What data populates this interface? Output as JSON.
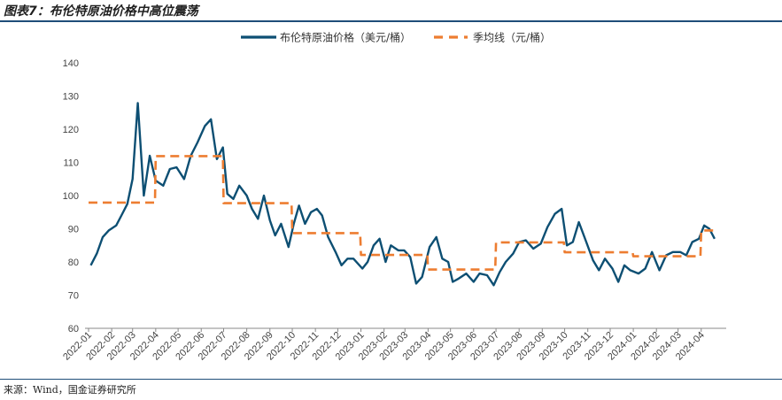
{
  "title": "图表7：布伦特原油价格中高位震荡",
  "source": "来源：Wind，国金证券研究所",
  "colors": {
    "series_main": "#0d4f73",
    "series_avg": "#ed7d31",
    "axis": "#888888",
    "rule": "#1f4e79"
  },
  "chart_data": {
    "type": "line",
    "title": "",
    "xlabel": "",
    "ylabel": "",
    "ylim": [
      60,
      140
    ],
    "yticks": [
      60,
      70,
      80,
      90,
      100,
      110,
      120,
      130,
      140
    ],
    "x_tick_labels": [
      "2022-01",
      "2022-02",
      "2022-03",
      "2022-04",
      "2022-05",
      "2022-06",
      "2022-07",
      "2022-08",
      "2022-09",
      "2022-10",
      "2022-11",
      "2022-12",
      "2023-01",
      "2023-02",
      "2023-03",
      "2023-04",
      "2023-05",
      "2023-06",
      "2023-07",
      "2023-08",
      "2023-09",
      "2023-10",
      "2023-11",
      "2023-12",
      "2024-01",
      "2024-02",
      "2024-03",
      "2024-04"
    ],
    "legend_position": "top-center",
    "grid": false,
    "series": [
      {
        "name": "布伦特原油价格（美元/桶）",
        "style": "solid",
        "x": [
          "2022-01-04",
          "2022-01-12",
          "2022-01-20",
          "2022-01-28",
          "2022-02-07",
          "2022-02-14",
          "2022-02-22",
          "2022-03-01",
          "2022-03-08",
          "2022-03-16",
          "2022-03-24",
          "2022-04-01",
          "2022-04-11",
          "2022-04-20",
          "2022-04-29",
          "2022-05-09",
          "2022-05-18",
          "2022-05-27",
          "2022-06-06",
          "2022-06-14",
          "2022-06-22",
          "2022-06-30",
          "2022-07-06",
          "2022-07-14",
          "2022-07-22",
          "2022-08-01",
          "2022-08-08",
          "2022-08-16",
          "2022-08-24",
          "2022-09-01",
          "2022-09-08",
          "2022-09-16",
          "2022-09-26",
          "2022-10-03",
          "2022-10-10",
          "2022-10-18",
          "2022-10-26",
          "2022-11-03",
          "2022-11-10",
          "2022-11-18",
          "2022-11-28",
          "2022-12-06",
          "2022-12-14",
          "2022-12-22",
          "2023-01-03",
          "2023-01-10",
          "2023-01-18",
          "2023-01-26",
          "2023-02-03",
          "2023-02-10",
          "2023-02-20",
          "2023-02-28",
          "2023-03-08",
          "2023-03-16",
          "2023-03-24",
          "2023-04-03",
          "2023-04-12",
          "2023-04-20",
          "2023-04-28",
          "2023-05-04",
          "2023-05-12",
          "2023-05-22",
          "2023-06-01",
          "2023-06-09",
          "2023-06-19",
          "2023-06-28",
          "2023-07-06",
          "2023-07-14",
          "2023-07-24",
          "2023-08-01",
          "2023-08-10",
          "2023-08-20",
          "2023-08-30",
          "2023-09-08",
          "2023-09-18",
          "2023-09-27",
          "2023-10-04",
          "2023-10-12",
          "2023-10-20",
          "2023-10-30",
          "2023-11-08",
          "2023-11-16",
          "2023-11-24",
          "2023-12-04",
          "2023-12-12",
          "2023-12-20",
          "2023-12-28",
          "2024-01-08",
          "2024-01-17",
          "2024-01-26",
          "2024-02-05",
          "2024-02-14",
          "2024-02-23",
          "2024-03-04",
          "2024-03-12",
          "2024-03-20",
          "2024-03-29",
          "2024-04-05",
          "2024-04-12",
          "2024-04-19"
        ],
        "values": [
          79.0,
          82.5,
          87.5,
          89.5,
          91.0,
          94.0,
          97.5,
          105.0,
          127.9,
          100.0,
          112.0,
          104.5,
          103.0,
          108.0,
          108.5,
          105.0,
          112.0,
          116.0,
          121.0,
          123.0,
          111.0,
          114.5,
          100.5,
          99.0,
          103.0,
          100.0,
          96.0,
          93.0,
          100.0,
          92.5,
          88.0,
          91.5,
          84.5,
          91.5,
          97.0,
          91.5,
          95.0,
          96.0,
          94.0,
          87.5,
          83.0,
          79.0,
          81.0,
          81.0,
          78.0,
          80.0,
          85.0,
          87.0,
          80.0,
          85.0,
          83.5,
          83.5,
          81.5,
          73.5,
          75.5,
          84.5,
          87.5,
          81.0,
          80.0,
          74.0,
          75.0,
          76.5,
          74.0,
          76.5,
          76.0,
          73.0,
          77.0,
          80.0,
          82.5,
          86.0,
          86.5,
          84.0,
          85.5,
          90.5,
          94.5,
          96.0,
          85.0,
          86.0,
          92.0,
          86.0,
          80.5,
          77.5,
          81.0,
          78.0,
          74.0,
          79.0,
          77.5,
          76.5,
          78.0,
          83.0,
          77.5,
          82.0,
          83.0,
          83.0,
          82.0,
          86.0,
          87.0,
          91.0,
          90.0,
          87.0
        ]
      },
      {
        "name": "季均线（元/桶）",
        "style": "dashed",
        "x": [
          "2022-01-01",
          "2022-03-31",
          "2022-04-01",
          "2022-06-30",
          "2022-07-01",
          "2022-09-30",
          "2022-10-01",
          "2022-12-31",
          "2023-01-01",
          "2023-03-31",
          "2023-04-01",
          "2023-06-30",
          "2023-07-01",
          "2023-09-30",
          "2023-10-01",
          "2023-12-31",
          "2024-01-01",
          "2024-03-31",
          "2024-04-01",
          "2024-04-20"
        ],
        "values": [
          97.9,
          97.9,
          111.9,
          111.9,
          97.7,
          97.7,
          88.7,
          88.7,
          82.1,
          82.1,
          77.7,
          77.7,
          85.9,
          85.9,
          82.9,
          82.9,
          81.7,
          81.7,
          89.5,
          89.5
        ]
      }
    ]
  }
}
